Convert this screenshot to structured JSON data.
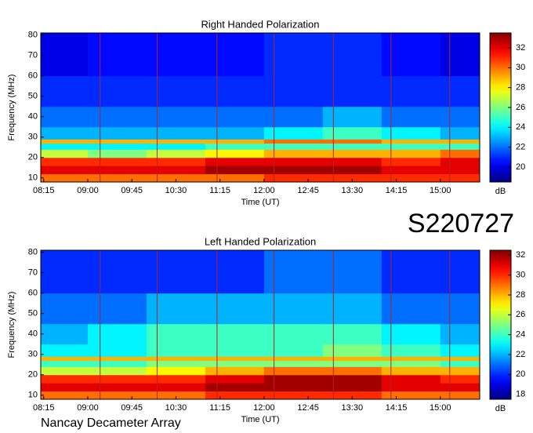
{
  "chart_data": [
    {
      "type": "heatmap",
      "title": "Right Handed Polarization",
      "xlabel": "Time (UT)",
      "ylabel": "Frequency (MHz)",
      "colorbar_label": "dB",
      "colormap": "jet",
      "xlim": [
        8.2,
        15.67
      ],
      "ylim": [
        8,
        81
      ],
      "xticks": [
        {
          "value": 8.25,
          "label": "08:15"
        },
        {
          "value": 9,
          "label": "09:00"
        },
        {
          "value": 9.75,
          "label": "09:45"
        },
        {
          "value": 10.5,
          "label": "10:30"
        },
        {
          "value": 11.25,
          "label": "11:15"
        },
        {
          "value": 12,
          "label": "12:00"
        },
        {
          "value": 12.75,
          "label": "12:45"
        },
        {
          "value": 13.5,
          "label": "13:30"
        },
        {
          "value": 14.25,
          "label": "14:15"
        },
        {
          "value": 15,
          "label": "15:00"
        }
      ],
      "yticks": [
        10,
        20,
        30,
        40,
        50,
        60,
        70,
        80
      ],
      "clim": [
        18.5,
        33.5
      ],
      "cticks": [
        20,
        22,
        24,
        26,
        28,
        30,
        32
      ],
      "vlines": [
        9.21,
        10.18,
        11.2,
        12.17,
        13.18,
        14.16,
        15.16
      ],
      "vline_color": "#b22222",
      "xbins": [
        8.2,
        9,
        10,
        11,
        12,
        13,
        14,
        15,
        15.67
      ],
      "ybins": [
        8,
        12,
        16,
        20,
        24,
        27,
        29,
        35,
        45,
        60,
        81
      ],
      "values": [
        [
          30,
          30,
          30,
          30,
          31,
          31,
          31,
          31
        ],
        [
          32,
          32,
          32,
          33,
          33,
          33,
          32,
          32
        ],
        [
          31,
          31,
          31,
          32,
          32,
          32,
          31,
          32
        ],
        [
          27,
          26,
          27,
          28,
          29,
          29,
          29,
          30
        ],
        [
          24,
          24,
          24,
          25,
          25,
          25,
          25,
          25
        ],
        [
          29,
          29,
          29,
          29,
          30,
          30,
          29,
          29
        ],
        [
          23,
          23,
          23,
          23,
          24,
          25,
          24,
          23
        ],
        [
          22,
          22,
          22,
          22,
          22,
          23,
          22,
          22
        ],
        [
          21,
          21,
          21,
          21,
          21,
          21,
          21,
          21
        ],
        [
          20,
          20.5,
          20.5,
          20.5,
          21,
          21,
          20.5,
          20
        ]
      ]
    },
    {
      "type": "heatmap",
      "title": "Left Handed Polarization",
      "xlabel": "Time (UT)",
      "ylabel": "Frequency (MHz)",
      "colorbar_label": "dB",
      "colormap": "jet",
      "xlim": [
        8.2,
        15.67
      ],
      "ylim": [
        8,
        81
      ],
      "xticks": [
        {
          "value": 8.25,
          "label": "08:15"
        },
        {
          "value": 9,
          "label": "09:00"
        },
        {
          "value": 9.75,
          "label": "09:45"
        },
        {
          "value": 10.5,
          "label": "10:30"
        },
        {
          "value": 11.25,
          "label": "11:15"
        },
        {
          "value": 12,
          "label": "12:00"
        },
        {
          "value": 12.75,
          "label": "12:45"
        },
        {
          "value": 13.5,
          "label": "13:30"
        },
        {
          "value": 14.25,
          "label": "14:15"
        },
        {
          "value": 15,
          "label": "15:00"
        }
      ],
      "yticks": [
        10,
        20,
        30,
        40,
        50,
        60,
        70,
        80
      ],
      "clim": [
        17.5,
        32.5
      ],
      "cticks": [
        18,
        20,
        22,
        24,
        26,
        28,
        30,
        32
      ],
      "vlines": [
        9.21,
        10.18,
        11.2,
        12.17,
        13.18,
        14.16,
        15.16
      ],
      "vline_color": "#b22222",
      "xbins": [
        8.2,
        9,
        10,
        11,
        12,
        13,
        14,
        15,
        15.67
      ],
      "ybins": [
        8,
        12,
        16,
        20,
        24,
        27,
        29,
        35,
        45,
        60,
        81
      ],
      "values": [
        [
          29,
          29,
          29,
          30,
          30,
          30,
          29,
          29
        ],
        [
          31,
          31,
          31,
          32,
          32,
          32,
          31,
          31
        ],
        [
          30,
          30,
          30,
          31,
          32,
          32,
          31,
          30
        ],
        [
          26,
          26,
          27,
          28,
          29,
          29,
          28,
          28
        ],
        [
          24,
          24,
          25,
          25,
          25,
          25,
          25,
          24
        ],
        [
          28,
          28,
          28,
          28,
          28,
          28,
          28,
          28
        ],
        [
          23,
          23,
          24,
          24,
          24,
          25,
          24,
          23
        ],
        [
          22,
          23,
          24,
          24,
          24,
          24,
          23,
          22
        ],
        [
          21,
          21,
          22,
          22,
          22,
          22,
          21,
          21
        ],
        [
          20,
          20,
          20,
          20,
          21,
          21,
          20,
          20
        ]
      ]
    }
  ],
  "annotations": {
    "event_id": "S220727",
    "observatory": "Nancay Decameter Array"
  }
}
